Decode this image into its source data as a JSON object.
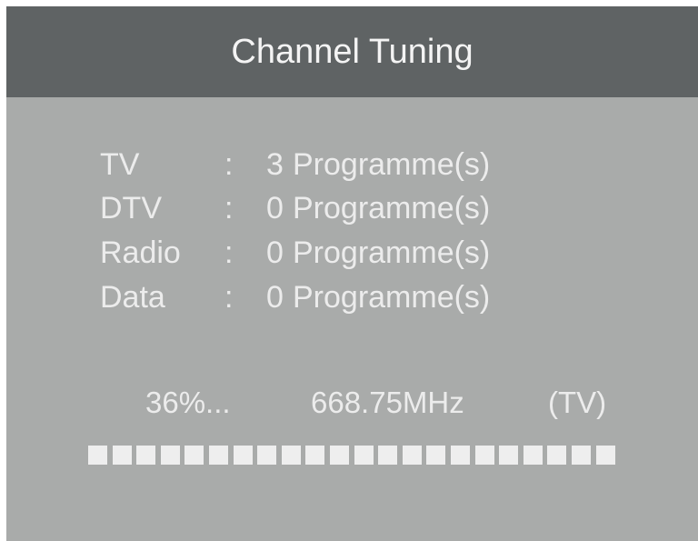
{
  "header": {
    "title": "Channel Tuning"
  },
  "rows": [
    {
      "label": "TV",
      "colon": ":",
      "count": "3",
      "unit": "Programme(s)"
    },
    {
      "label": "DTV",
      "colon": ":",
      "count": "0",
      "unit": "Programme(s)"
    },
    {
      "label": "Radio",
      "colon": ":",
      "count": "0",
      "unit": "Programme(s)"
    },
    {
      "label": "Data",
      "colon": ":",
      "count": "0",
      "unit": "Programme(s)"
    }
  ],
  "status": {
    "percent": "36%...",
    "frequency": "668.75MHz",
    "type": "(TV)"
  },
  "progress": {
    "percent": 36
  },
  "colors": {
    "header": "#5f6364",
    "body": "#a9abaa",
    "text": "#ececec",
    "block": "#eeeeee"
  }
}
